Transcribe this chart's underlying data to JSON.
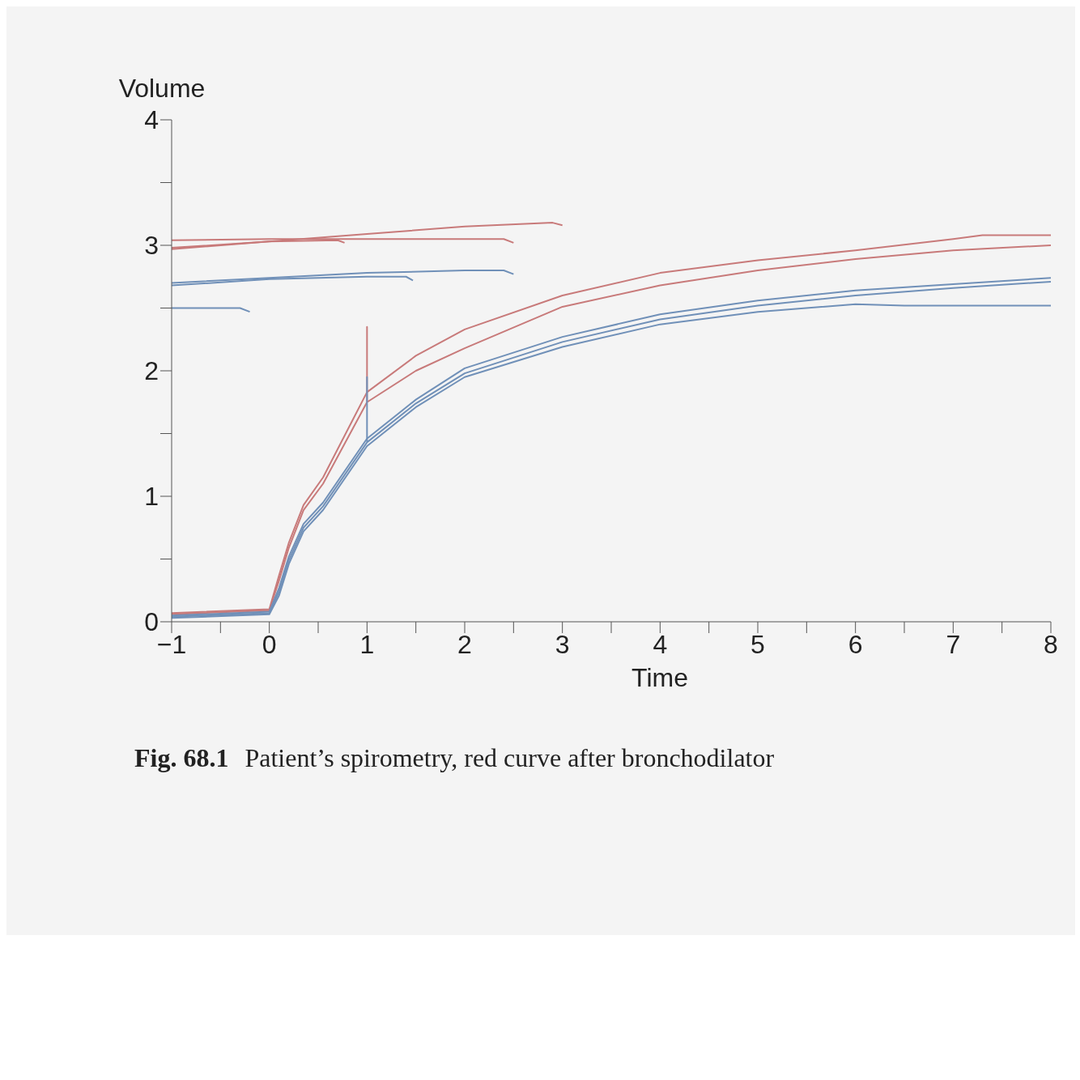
{
  "chart_data": {
    "type": "line",
    "xlabel": "Time",
    "ylabel": "Volume",
    "xlim": [
      -1,
      8
    ],
    "ylim": [
      0,
      4
    ],
    "xticks": [
      -1,
      {
        "value": -0.5,
        "label": null
      },
      0,
      {
        "value": 0.5,
        "label": null
      },
      1,
      {
        "value": 1.5,
        "label": null
      },
      2,
      {
        "value": 2.5,
        "label": null
      },
      3,
      {
        "value": 3.5,
        "label": null
      },
      4,
      {
        "value": 4.5,
        "label": null
      },
      5,
      {
        "value": 5.5,
        "label": null
      },
      6,
      {
        "value": 6.5,
        "label": null
      },
      7,
      {
        "value": 7.5,
        "label": null
      },
      8
    ],
    "yticks": [
      0,
      {
        "value": 0.5,
        "label": null
      },
      1,
      {
        "value": 1.5,
        "label": null
      },
      2,
      {
        "value": 2.5,
        "label": null
      },
      3,
      {
        "value": 3.5,
        "label": null
      },
      4
    ],
    "grid": false,
    "marker": "none",
    "line_style": "solid",
    "series": [
      {
        "color": "#c87a7a",
        "x": [
          -1,
          0,
          0.1,
          0.2,
          0.35,
          0.55,
          1,
          1.5,
          2,
          3,
          4,
          5,
          6,
          7,
          7.3,
          8
        ],
        "values": [
          0.07,
          0.1,
          0.37,
          0.63,
          0.93,
          1.15,
          1.83,
          2.12,
          2.33,
          2.6,
          2.78,
          2.88,
          2.96,
          3.05,
          3.08,
          3.08
        ]
      },
      {
        "color": "#c87a7a",
        "x": [
          -1,
          0,
          0.1,
          0.2,
          0.35,
          0.55,
          1,
          1,
          1,
          1.5,
          2,
          3,
          4,
          5,
          6,
          7,
          8
        ],
        "values": [
          0.06,
          0.09,
          0.33,
          0.59,
          0.89,
          1.1,
          1.75,
          2.35,
          1.75,
          2.0,
          2.18,
          2.51,
          2.68,
          2.8,
          2.89,
          2.96,
          3.0
        ]
      },
      {
        "color": "#7090b8",
        "x": [
          -1,
          0,
          0.1,
          0.2,
          0.35,
          0.55,
          1,
          1.5,
          2,
          3,
          4,
          5,
          6,
          7,
          8
        ],
        "values": [
          0.05,
          0.08,
          0.27,
          0.52,
          0.78,
          0.95,
          1.46,
          1.77,
          2.02,
          2.27,
          2.45,
          2.56,
          2.64,
          2.69,
          2.74
        ]
      },
      {
        "color": "#7090b8",
        "x": [
          -1,
          0,
          0.1,
          0.2,
          0.35,
          0.55,
          1,
          1,
          1,
          1.5,
          2,
          3,
          4,
          5,
          6,
          7,
          8
        ],
        "values": [
          0.04,
          0.07,
          0.24,
          0.49,
          0.75,
          0.92,
          1.43,
          1.95,
          1.43,
          1.74,
          1.98,
          2.23,
          2.41,
          2.52,
          2.6,
          2.66,
          2.71
        ]
      },
      {
        "color": "#7090b8",
        "x": [
          -1,
          0,
          0.1,
          0.2,
          0.35,
          0.55,
          1,
          1.5,
          2,
          3,
          4,
          5,
          6,
          6.5,
          7,
          8
        ],
        "values": [
          0.03,
          0.06,
          0.21,
          0.46,
          0.72,
          0.89,
          1.4,
          1.71,
          1.95,
          2.19,
          2.37,
          2.47,
          2.53,
          2.52,
          2.52,
          2.52
        ]
      },
      {
        "color": "#c87a7a",
        "x": [
          -1,
          0,
          1,
          2,
          2.4,
          2.5
        ],
        "values": [
          3.04,
          3.05,
          3.05,
          3.05,
          3.05,
          3.02
        ]
      },
      {
        "color": "#c87a7a",
        "x": [
          -1,
          0,
          1,
          2,
          2.9,
          3.0
        ],
        "values": [
          2.97,
          3.03,
          3.09,
          3.15,
          3.18,
          3.16
        ]
      },
      {
        "color": "#c87a7a",
        "x": [
          -1,
          0,
          0.7,
          0.77
        ],
        "values": [
          2.98,
          3.03,
          3.04,
          3.02
        ]
      },
      {
        "color": "#7090b8",
        "x": [
          -1,
          0,
          1,
          2,
          2.4,
          2.5
        ],
        "values": [
          2.7,
          2.74,
          2.78,
          2.8,
          2.8,
          2.77
        ]
      },
      {
        "color": "#7090b8",
        "x": [
          -1,
          0,
          1,
          1.4,
          1.47
        ],
        "values": [
          2.68,
          2.73,
          2.75,
          2.75,
          2.72
        ]
      },
      {
        "color": "#7090b8",
        "x": [
          -1,
          -0.3,
          -0.2
        ],
        "values": [
          2.5,
          2.5,
          2.47
        ]
      }
    ],
    "annotations": [
      "Fig. 68.1",
      "Patient’s spirometry, red curve after bronchodilator"
    ]
  }
}
